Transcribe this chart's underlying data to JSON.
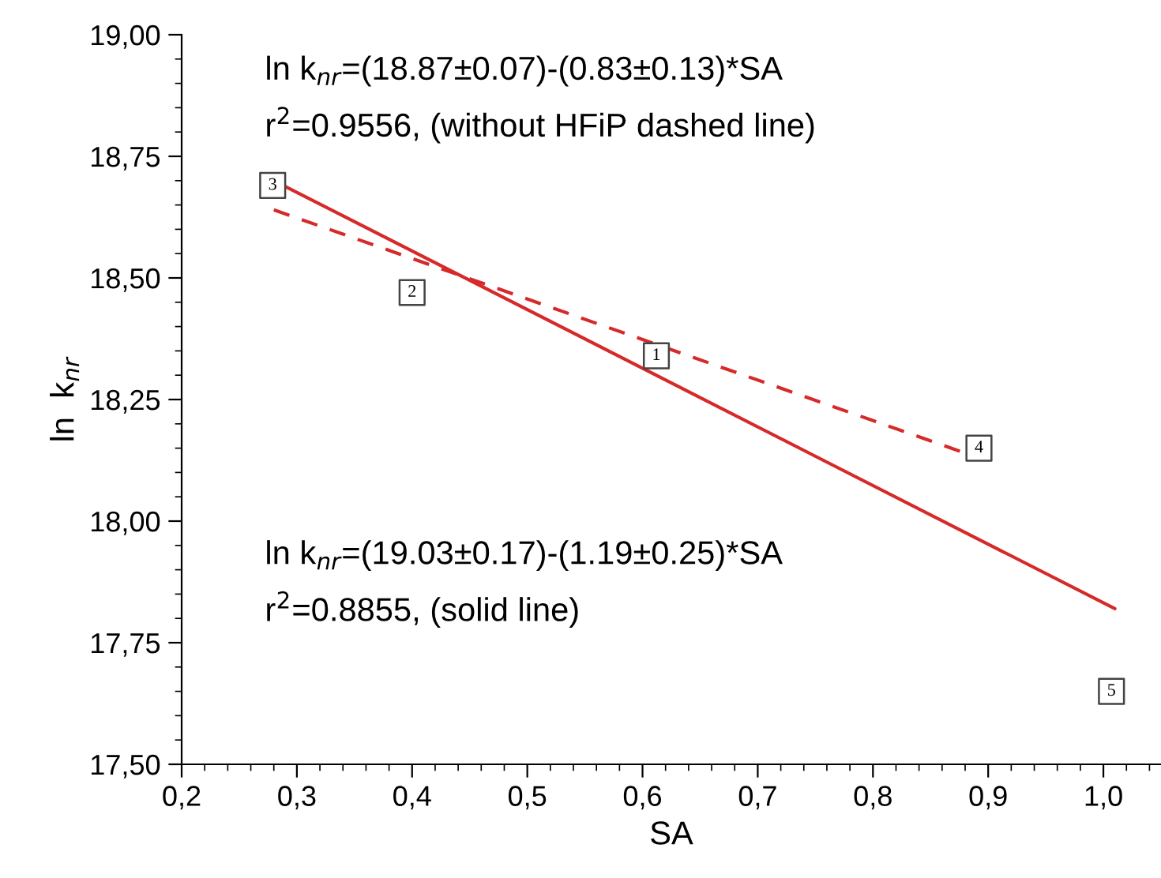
{
  "chart_data": {
    "type": "scatter",
    "xlabel": "SA",
    "ylabel": "ln  k$_{nr}$",
    "xlim": [
      0.2,
      1.05
    ],
    "ylim": [
      17.5,
      19.0
    ],
    "xticks": [
      {
        "value": 0.2,
        "label": "0,2"
      },
      {
        "value": 0.3,
        "label": "0,3"
      },
      {
        "value": 0.4,
        "label": "0,4"
      },
      {
        "value": 0.5,
        "label": "0,5"
      },
      {
        "value": 0.6,
        "label": "0,6"
      },
      {
        "value": 0.7,
        "label": "0,7"
      },
      {
        "value": 0.8,
        "label": "0,8"
      },
      {
        "value": 0.9,
        "label": "0,9"
      },
      {
        "value": 1.0,
        "label": "1,0"
      }
    ],
    "yticks": [
      {
        "value": 17.5,
        "label": "17,50"
      },
      {
        "value": 17.75,
        "label": "17,75"
      },
      {
        "value": 18.0,
        "label": "18,00"
      },
      {
        "value": 18.25,
        "label": "18,25"
      },
      {
        "value": 18.5,
        "label": "18,50"
      },
      {
        "value": 18.75,
        "label": "18,75"
      },
      {
        "value": 19.0,
        "label": "19,00"
      }
    ],
    "grid": false,
    "series": [
      {
        "color": "#444444",
        "marker": "square",
        "x": [
          0.279,
          0.4,
          0.612,
          0.892,
          1.007
        ],
        "values": [
          18.69,
          18.47,
          18.34,
          18.15,
          17.65
        ]
      },
      {
        "type": "line",
        "color": "#d62a2a",
        "line_style": "solid",
        "marker": "none",
        "x": [
          0.28,
          1.01
        ],
        "values": [
          18.7,
          17.82
        ]
      },
      {
        "type": "line",
        "color": "#d62a2a",
        "line_style": "dashed",
        "marker": "none",
        "x": [
          0.28,
          0.88
        ],
        "values": [
          18.64,
          18.14
        ]
      }
    ],
    "annotations": [
      "ln k$_{nr}$=(18.87±0.07)-(0.83±0.13)*SA",
      "r$^{2}$=0.9556, (without HFiP dashed line)",
      "ln k$_{nr}$=(19.03±0.17)-(1.19±0.25)*SA",
      "r$^{2}$=0.8855, (solid line)",
      {
        "text": "3",
        "x": 0.279,
        "y": 18.69
      },
      {
        "text": "2",
        "x": 0.4,
        "y": 18.47
      },
      {
        "text": "1",
        "x": 0.612,
        "y": 18.34
      },
      {
        "text": "4",
        "x": 0.892,
        "y": 18.15
      },
      {
        "text": "5",
        "x": 1.007,
        "y": 17.65
      }
    ]
  }
}
